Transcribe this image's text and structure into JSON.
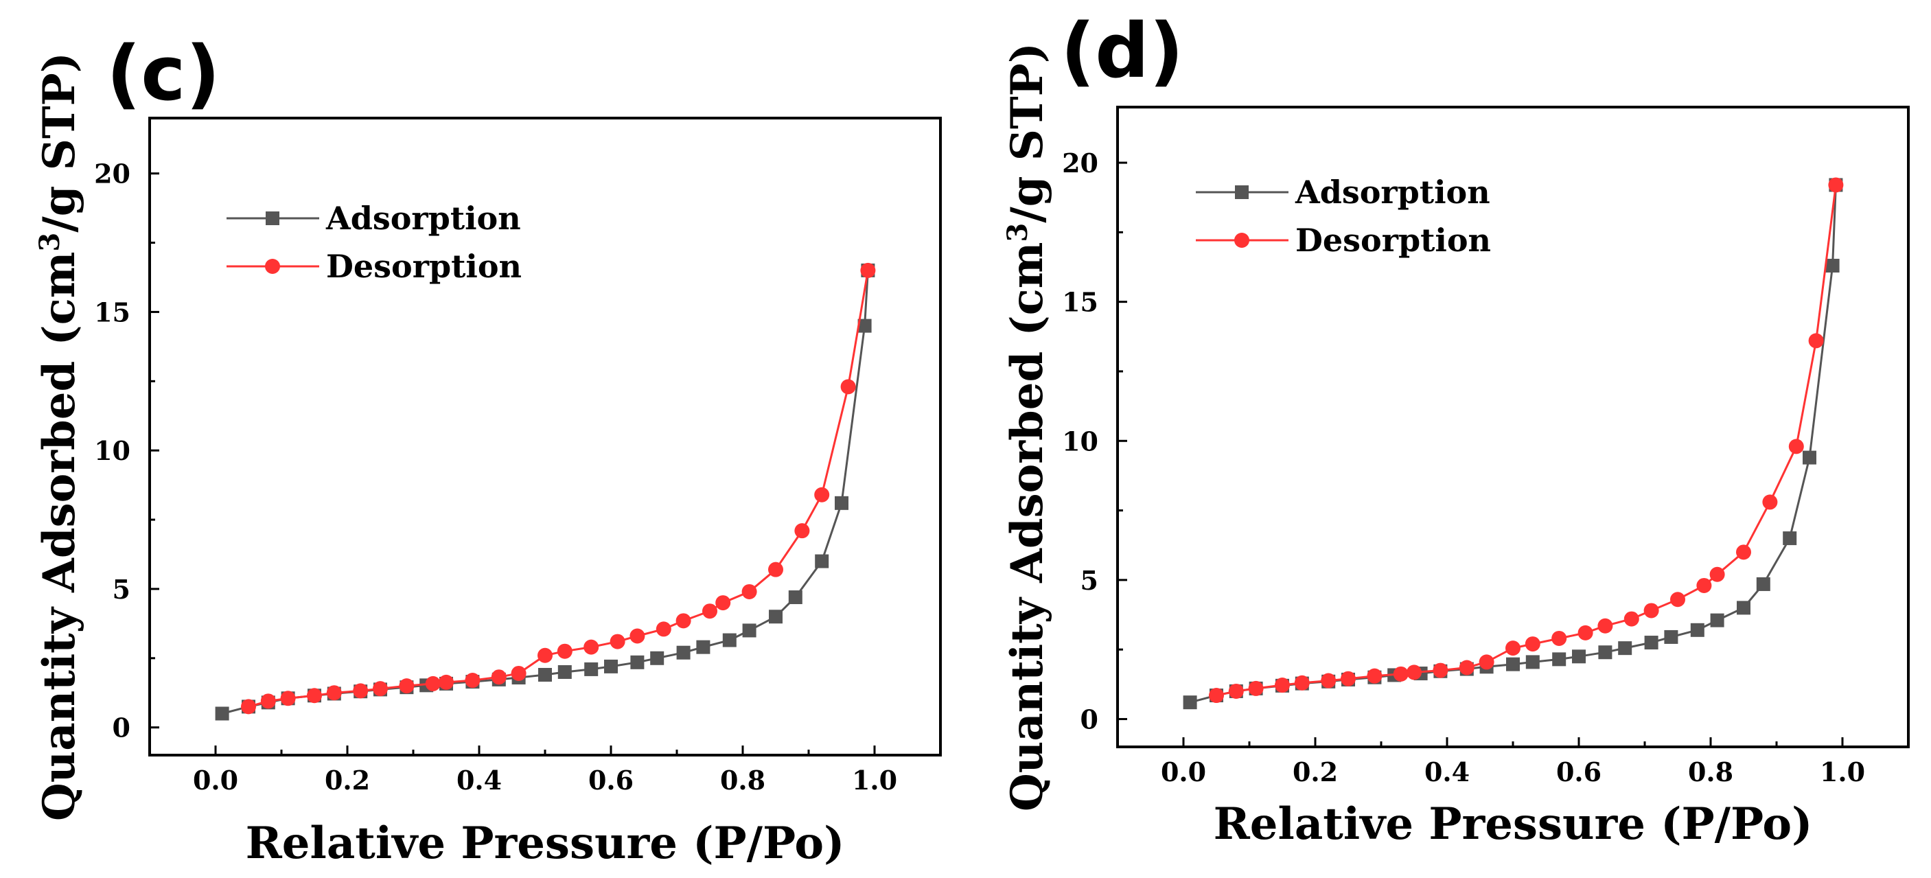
{
  "chart_data": [
    {
      "type": "line",
      "panel_label": "(c)",
      "xlabel": "Relative Pressure (P/Po)",
      "ylabel": "Quantity Adsorbed (cm",
      "ylabel_sup": "3",
      "ylabel_end": "/g STP)",
      "xlim": [
        -0.1,
        1.1
      ],
      "ylim": [
        -1,
        22
      ],
      "xticks": [
        "0.0",
        "0.2",
        "0.4",
        "0.6",
        "0.8",
        "1.0"
      ],
      "yticks": [
        "0",
        "5",
        "10",
        "15",
        "20"
      ],
      "legend_position": "top-left",
      "series": [
        {
          "name": "Adsorption",
          "color": "#555555",
          "marker": "square",
          "x": [
            0.01,
            0.05,
            0.08,
            0.11,
            0.15,
            0.18,
            0.22,
            0.25,
            0.29,
            0.32,
            0.35,
            0.39,
            0.43,
            0.46,
            0.5,
            0.53,
            0.57,
            0.6,
            0.64,
            0.67,
            0.71,
            0.74,
            0.78,
            0.81,
            0.85,
            0.88,
            0.92,
            0.95,
            0.985,
            0.99
          ],
          "y": [
            0.5,
            0.75,
            0.9,
            1.05,
            1.15,
            1.22,
            1.3,
            1.37,
            1.45,
            1.52,
            1.58,
            1.65,
            1.73,
            1.8,
            1.9,
            2.0,
            2.1,
            2.2,
            2.35,
            2.5,
            2.7,
            2.9,
            3.15,
            3.5,
            4.0,
            4.7,
            6.0,
            8.1,
            14.5,
            16.5
          ]
        },
        {
          "name": "Desorption",
          "color": "#ff3333",
          "marker": "circle",
          "x": [
            0.05,
            0.08,
            0.11,
            0.15,
            0.18,
            0.22,
            0.25,
            0.29,
            0.33,
            0.35,
            0.39,
            0.43,
            0.46,
            0.5,
            0.53,
            0.57,
            0.61,
            0.64,
            0.68,
            0.71,
            0.75,
            0.77,
            0.81,
            0.85,
            0.89,
            0.92,
            0.96,
            0.99
          ],
          "y": [
            0.75,
            0.95,
            1.05,
            1.15,
            1.25,
            1.32,
            1.4,
            1.5,
            1.58,
            1.63,
            1.7,
            1.82,
            1.95,
            2.6,
            2.75,
            2.9,
            3.1,
            3.3,
            3.55,
            3.85,
            4.2,
            4.5,
            4.9,
            5.7,
            7.1,
            8.4,
            12.3,
            16.5
          ]
        }
      ]
    },
    {
      "type": "line",
      "panel_label": "(d)",
      "xlabel": "Relative Pressure (P/Po)",
      "ylabel": "Quantity Adsorbed (cm",
      "ylabel_sup": "3",
      "ylabel_end": "/g STP)",
      "xlim": [
        -0.1,
        1.1
      ],
      "ylim": [
        -1,
        22
      ],
      "xticks": [
        "0.0",
        "0.2",
        "0.4",
        "0.6",
        "0.8",
        "1.0"
      ],
      "yticks": [
        "0",
        "5",
        "10",
        "15",
        "20"
      ],
      "legend_position": "top-left",
      "series": [
        {
          "name": "Adsorption",
          "color": "#555555",
          "marker": "square",
          "x": [
            0.01,
            0.05,
            0.08,
            0.11,
            0.15,
            0.18,
            0.22,
            0.25,
            0.29,
            0.32,
            0.36,
            0.39,
            0.43,
            0.46,
            0.5,
            0.53,
            0.57,
            0.6,
            0.64,
            0.67,
            0.71,
            0.74,
            0.78,
            0.81,
            0.85,
            0.88,
            0.92,
            0.95,
            0.985,
            0.99
          ],
          "y": [
            0.6,
            0.85,
            1.0,
            1.1,
            1.2,
            1.28,
            1.35,
            1.42,
            1.5,
            1.58,
            1.64,
            1.72,
            1.8,
            1.88,
            1.97,
            2.05,
            2.15,
            2.25,
            2.4,
            2.55,
            2.75,
            2.95,
            3.2,
            3.55,
            4.0,
            4.85,
            6.5,
            9.4,
            16.3,
            19.2
          ]
        },
        {
          "name": "Desorption",
          "color": "#ff3333",
          "marker": "circle",
          "x": [
            0.05,
            0.08,
            0.11,
            0.15,
            0.18,
            0.22,
            0.25,
            0.29,
            0.33,
            0.35,
            0.39,
            0.43,
            0.46,
            0.5,
            0.53,
            0.57,
            0.61,
            0.64,
            0.68,
            0.71,
            0.75,
            0.79,
            0.81,
            0.85,
            0.89,
            0.93,
            0.96,
            0.99
          ],
          "y": [
            0.85,
            1.0,
            1.1,
            1.22,
            1.3,
            1.38,
            1.45,
            1.55,
            1.62,
            1.68,
            1.75,
            1.85,
            2.05,
            2.55,
            2.7,
            2.9,
            3.1,
            3.35,
            3.6,
            3.9,
            4.3,
            4.8,
            5.2,
            6.0,
            7.8,
            9.8,
            13.6,
            19.2
          ]
        }
      ]
    }
  ]
}
